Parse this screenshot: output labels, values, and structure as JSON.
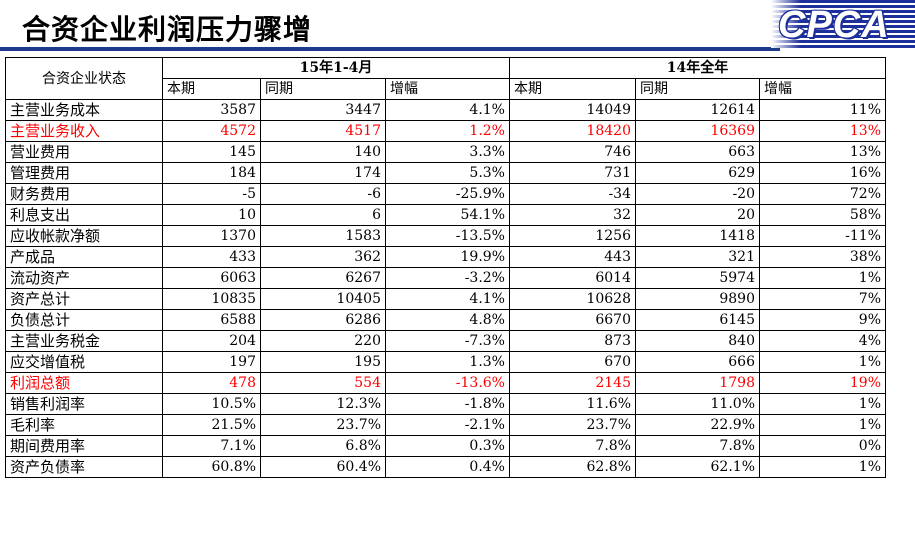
{
  "header": {
    "title": "合资企业利润压力骤增",
    "logo": "CPCA"
  },
  "table": {
    "corner_label": "合资企业状态",
    "groups": [
      "15年1-4月",
      "14年全年"
    ],
    "subheaders": [
      "本期",
      "同期",
      "增幅",
      "本期",
      "同期",
      "增幅"
    ],
    "highlight_color": "#ff0000",
    "rows": [
      {
        "label": "主营业务成本",
        "highlight": false,
        "values": [
          "3587",
          "3447",
          "4.1%",
          "14049",
          "12614",
          "11%"
        ]
      },
      {
        "label": "主营业务收入",
        "highlight": true,
        "values": [
          "4572",
          "4517",
          "1.2%",
          "18420",
          "16369",
          "13%"
        ]
      },
      {
        "label": "营业费用",
        "highlight": false,
        "values": [
          "145",
          "140",
          "3.3%",
          "746",
          "663",
          "13%"
        ]
      },
      {
        "label": "管理费用",
        "highlight": false,
        "values": [
          "184",
          "174",
          "5.3%",
          "731",
          "629",
          "16%"
        ]
      },
      {
        "label": "财务费用",
        "highlight": false,
        "values": [
          "-5",
          "-6",
          "-25.9%",
          "-34",
          "-20",
          "72%"
        ]
      },
      {
        "label": "利息支出",
        "highlight": false,
        "values": [
          "10",
          "6",
          "54.1%",
          "32",
          "20",
          "58%"
        ]
      },
      {
        "label": "应收帐款净额",
        "highlight": false,
        "values": [
          "1370",
          "1583",
          "-13.5%",
          "1256",
          "1418",
          "-11%"
        ]
      },
      {
        "label": "产成品",
        "highlight": false,
        "values": [
          "433",
          "362",
          "19.9%",
          "443",
          "321",
          "38%"
        ]
      },
      {
        "label": "流动资产",
        "highlight": false,
        "values": [
          "6063",
          "6267",
          "-3.2%",
          "6014",
          "5974",
          "1%"
        ]
      },
      {
        "label": "资产总计",
        "highlight": false,
        "values": [
          "10835",
          "10405",
          "4.1%",
          "10628",
          "9890",
          "7%"
        ]
      },
      {
        "label": "负债总计",
        "highlight": false,
        "values": [
          "6588",
          "6286",
          "4.8%",
          "6670",
          "6145",
          "9%"
        ]
      },
      {
        "label": "主营业务税金",
        "highlight": false,
        "values": [
          "204",
          "220",
          "-7.3%",
          "873",
          "840",
          "4%"
        ]
      },
      {
        "label": "应交增值税",
        "highlight": false,
        "values": [
          "197",
          "195",
          "1.3%",
          "670",
          "666",
          "1%"
        ]
      },
      {
        "label": "利润总额",
        "highlight": true,
        "values": [
          "478",
          "554",
          "-13.6%",
          "2145",
          "1798",
          "19%"
        ]
      },
      {
        "label": "销售利润率",
        "highlight": false,
        "values": [
          "10.5%",
          "12.3%",
          "-1.8%",
          "11.6%",
          "11.0%",
          "1%"
        ]
      },
      {
        "label": "毛利率",
        "highlight": false,
        "values": [
          "21.5%",
          "23.7%",
          "-2.1%",
          "23.7%",
          "22.9%",
          "1%"
        ]
      },
      {
        "label": "期间费用率",
        "highlight": false,
        "values": [
          "7.1%",
          "6.8%",
          "0.3%",
          "7.8%",
          "7.8%",
          "0%"
        ]
      },
      {
        "label": "资产负债率",
        "highlight": false,
        "values": [
          "60.8%",
          "60.4%",
          "0.4%",
          "62.8%",
          "62.1%",
          "1%"
        ]
      }
    ]
  }
}
